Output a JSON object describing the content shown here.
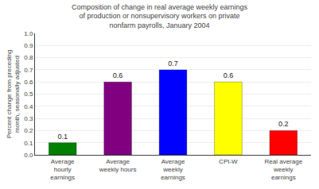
{
  "chart_data": {
    "type": "bar",
    "title": "Composition of change in real average weekly earnings\nof production or nonsupervisory workers on private\nnonfarm payrolls, January 2004",
    "categories": [
      "Average\nhourly\nearnings",
      "Average\nweekly hours",
      "Average\nweekly\nearnings",
      "CPI-W",
      "Real average\nweekly\nearnings"
    ],
    "values": [
      0.1,
      0.6,
      0.7,
      0.6,
      0.2
    ],
    "colors": [
      "#008000",
      "#800080",
      "#0000FF",
      "#FFFF00",
      "#FF0000"
    ],
    "ylabel": "Percent change from preceding\nmonth, seasonally adjusted",
    "ylim": [
      0,
      1.0
    ],
    "yticks": [
      {
        "value": 0.0,
        "label": "0.0"
      },
      0.1,
      0.2,
      0.3,
      0.4,
      0.5,
      0.6,
      0.7,
      0.8,
      0.9,
      {
        "value": 1.0,
        "label": "1.0"
      }
    ],
    "grid": true,
    "data_labels": true
  }
}
